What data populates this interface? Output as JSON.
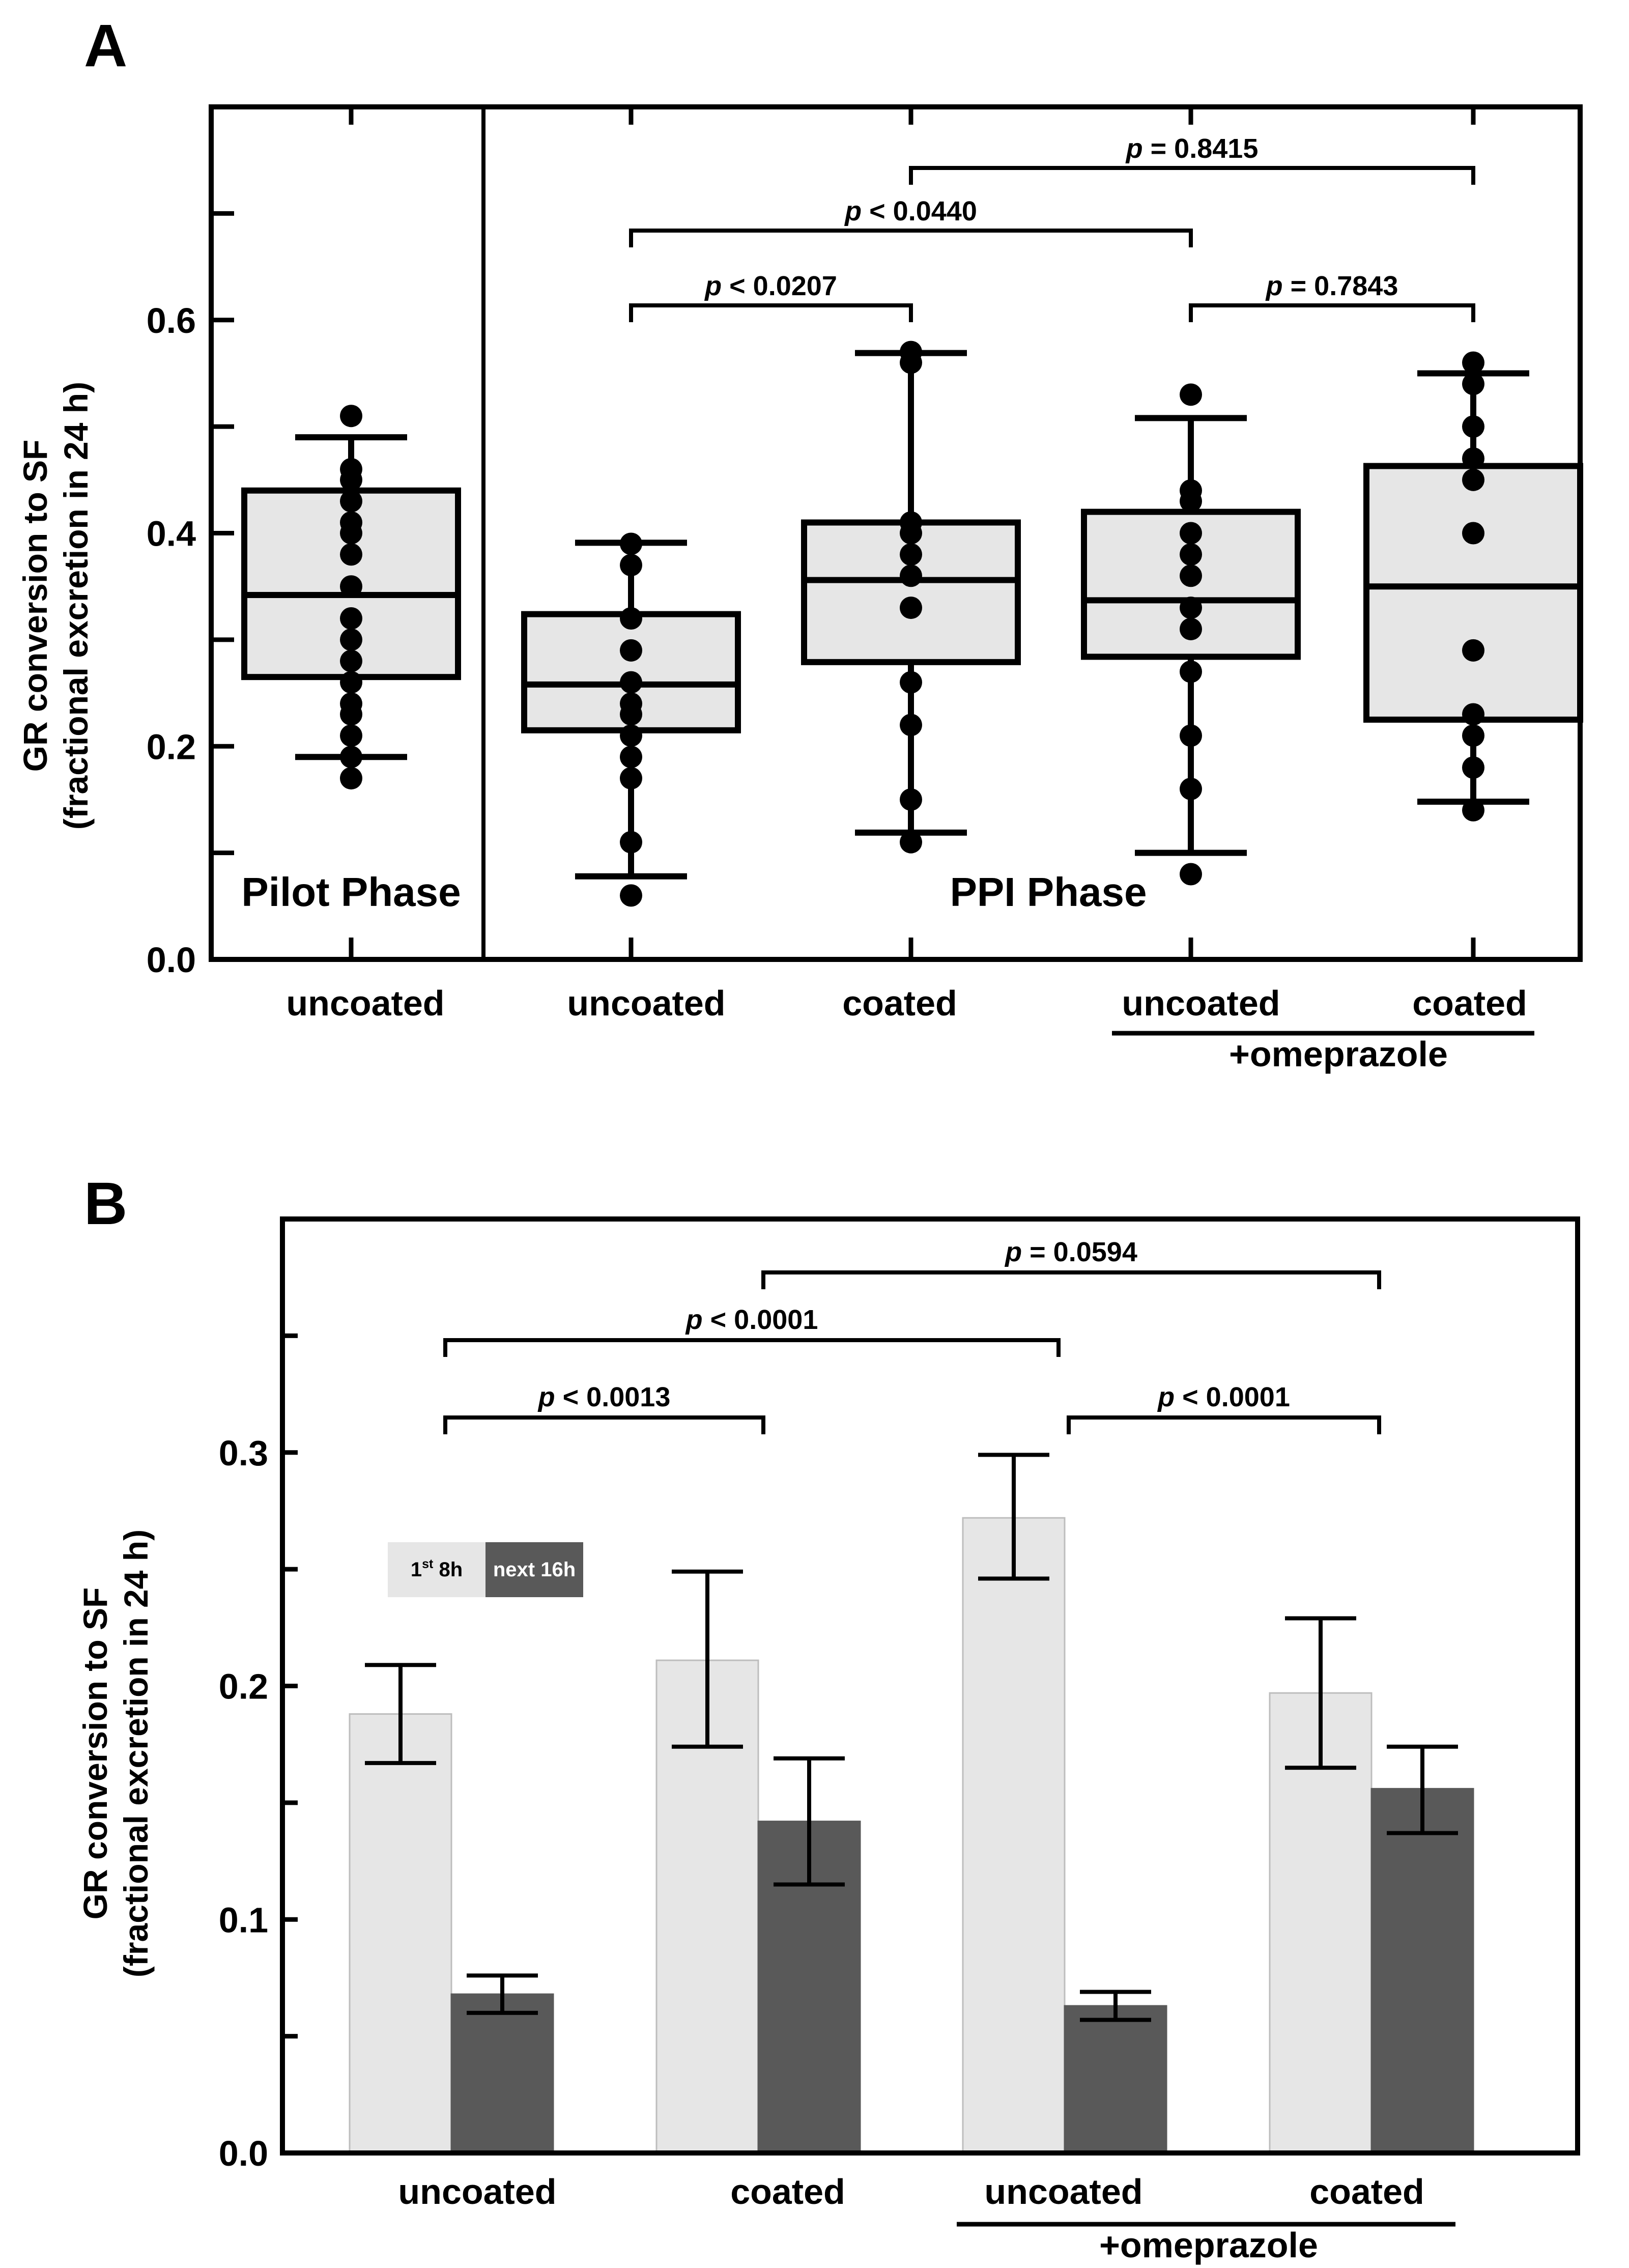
{
  "chart_data": [
    {
      "panel_label": "A",
      "type": "box",
      "ylabel_line1": "GR conversion to SF",
      "ylabel_line2": "(fractional excretion in 24 h)",
      "ylim": [
        0,
        0.8
      ],
      "yticks": [
        0.0,
        0.2,
        0.4,
        0.6
      ],
      "ytick_labels": [
        "0.0",
        "0.2",
        "0.4",
        "0.6"
      ],
      "minor_yticks": [
        0.1,
        0.3,
        0.5,
        0.7
      ],
      "phase_labels": [
        "Pilot Phase",
        "PPI Phase"
      ],
      "categories": [
        "uncoated",
        "uncoated",
        "coated",
        "uncoated",
        "coated"
      ],
      "group_label": "+omeprazole",
      "boxes": [
        {
          "name": "uncoated",
          "phase": "Pilot Phase",
          "whisker_low": 0.19,
          "q1": 0.265,
          "median": 0.342,
          "q3": 0.44,
          "whisker_high": 0.49,
          "points": [
            0.51,
            0.46,
            0.45,
            0.43,
            0.41,
            0.4,
            0.38,
            0.35,
            0.32,
            0.3,
            0.28,
            0.26,
            0.24,
            0.23,
            0.21,
            0.19,
            0.17
          ]
        },
        {
          "name": "uncoated",
          "phase": "PPI Phase",
          "whisker_low": 0.078,
          "q1": 0.215,
          "median": 0.258,
          "q3": 0.324,
          "whisker_high": 0.391,
          "points": [
            0.39,
            0.37,
            0.32,
            0.29,
            0.26,
            0.24,
            0.23,
            0.21,
            0.19,
            0.17,
            0.11,
            0.06
          ]
        },
        {
          "name": "coated",
          "phase": "PPI Phase",
          "whisker_low": 0.119,
          "q1": 0.279,
          "median": 0.356,
          "q3": 0.41,
          "whisker_high": 0.569,
          "points": [
            0.57,
            0.56,
            0.41,
            0.4,
            0.38,
            0.36,
            0.33,
            0.26,
            0.22,
            0.15,
            0.11
          ]
        },
        {
          "name": "uncoated +omeprazole",
          "phase": "PPI Phase",
          "whisker_low": 0.1,
          "q1": 0.284,
          "median": 0.337,
          "q3": 0.42,
          "whisker_high": 0.508,
          "points": [
            0.53,
            0.44,
            0.43,
            0.4,
            0.38,
            0.36,
            0.33,
            0.31,
            0.27,
            0.21,
            0.16,
            0.08
          ]
        },
        {
          "name": "coated +omeprazole",
          "phase": "PPI Phase",
          "whisker_low": 0.148,
          "q1": 0.225,
          "median": 0.35,
          "q3": 0.463,
          "whisker_high": 0.55,
          "points": [
            0.56,
            0.54,
            0.5,
            0.47,
            0.45,
            0.4,
            0.29,
            0.23,
            0.21,
            0.18,
            0.14
          ]
        }
      ],
      "comparisons": [
        {
          "from": 1,
          "to": 2,
          "label": "p < 0.0207",
          "level": 1
        },
        {
          "from": 1,
          "to": 3,
          "label": "p < 0.0440",
          "level": 2
        },
        {
          "from": 3,
          "to": 4,
          "label": "p = 0.7843",
          "level": 1
        },
        {
          "from": 2,
          "to": 4,
          "label": "p = 0.8415",
          "level": 3
        }
      ]
    },
    {
      "panel_label": "B",
      "type": "bar",
      "ylabel_line1": "GR conversion to SF",
      "ylabel_line2": "(fractional excretion in 24 h)",
      "ylim": [
        0,
        0.4
      ],
      "yticks": [
        0.0,
        0.1,
        0.2,
        0.3
      ],
      "ytick_labels": [
        "0.0",
        "0.1",
        "0.2",
        "0.3"
      ],
      "minor_yticks": [
        0.05,
        0.15,
        0.25,
        0.35
      ],
      "categories": [
        "uncoated",
        "coated",
        "uncoated",
        "coated"
      ],
      "group_label": "+omeprazole",
      "legend": {
        "first": {
          "prefix": "1",
          "sup": "st",
          "suffix": " 8h"
        },
        "second": "next 16h"
      },
      "series": [
        {
          "name": "1st 8h",
          "color": "#e6e6e6",
          "values": [
            0.188,
            0.211,
            0.272,
            0.197
          ],
          "err_low": [
            0.167,
            0.174,
            0.246,
            0.165
          ],
          "err_high": [
            0.209,
            0.249,
            0.299,
            0.229
          ]
        },
        {
          "name": "next 16h",
          "color": "#595959",
          "values": [
            0.068,
            0.142,
            0.063,
            0.156
          ],
          "err_low": [
            0.06,
            0.115,
            0.057,
            0.137
          ],
          "err_high": [
            0.076,
            0.169,
            0.069,
            0.174
          ]
        }
      ],
      "comparisons": [
        {
          "from": 0,
          "to": 1,
          "label": "p < 0.0013",
          "level": 1
        },
        {
          "from": 0,
          "to": 2,
          "label": "p < 0.0001",
          "level": 2
        },
        {
          "from": 2,
          "to": 3,
          "label": "p < 0.0001",
          "level": 1
        },
        {
          "from": 1,
          "to": 3,
          "label": "p = 0.0594",
          "level": 3
        }
      ]
    }
  ]
}
